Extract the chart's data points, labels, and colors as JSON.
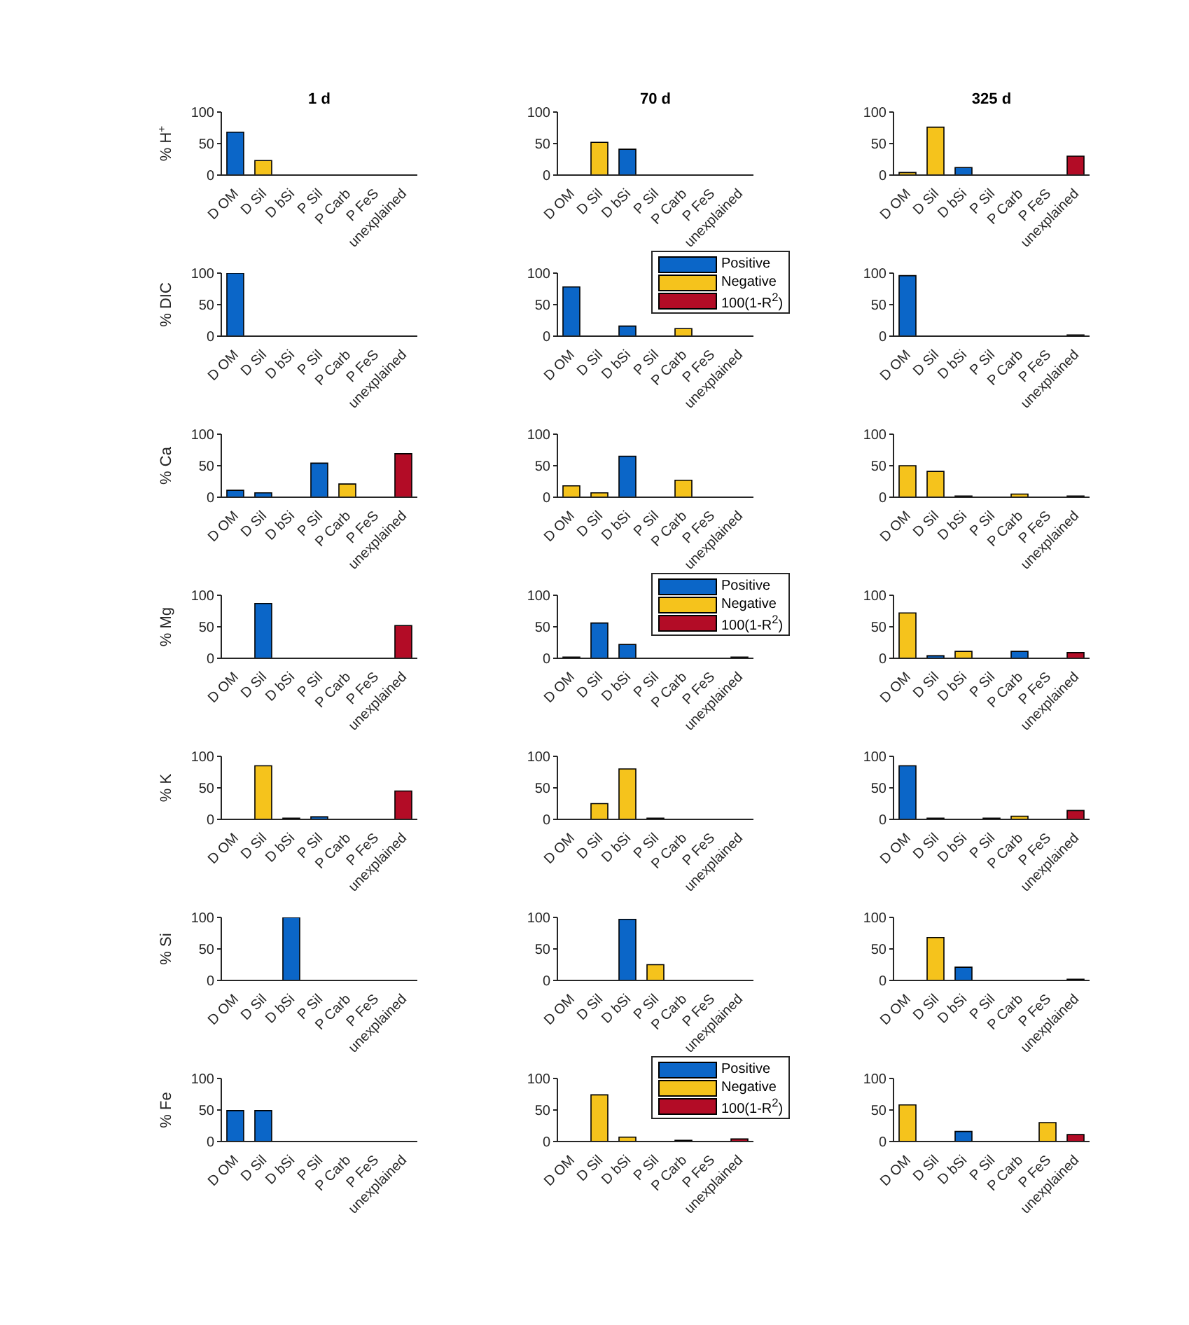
{
  "chart_data": [
    {
      "type": "bar",
      "title": "1 d",
      "ylabel": "% H$^{+}$",
      "categories": [
        "D OM",
        "D Sil",
        "D bSi",
        "P Sil",
        "P Carb",
        "P FeS",
        "unexplained"
      ],
      "stacked": true,
      "ylim": [
        0,
        100
      ],
      "yticks": [
        0,
        50,
        100
      ],
      "series": [
        {
          "color": "#0b66c8",
          "values": [
            68,
            null,
            null,
            null,
            null,
            null,
            null
          ]
        },
        {
          "color": "#f5c31c",
          "values": [
            null,
            23,
            null,
            null,
            null,
            null,
            null
          ]
        }
      ]
    },
    {
      "type": "bar",
      "title": "70 d",
      "categories": [
        "D OM",
        "D Sil",
        "D bSi",
        "P Sil",
        "P Carb",
        "P FeS",
        "unexplained"
      ],
      "stacked": true,
      "ylim": [
        0,
        100
      ],
      "yticks": [
        0,
        50,
        100
      ],
      "series": [
        {
          "color": "#0b66c8",
          "values": [
            null,
            null,
            41,
            null,
            null,
            null,
            null
          ]
        },
        {
          "color": "#f5c31c",
          "values": [
            null,
            52,
            null,
            null,
            null,
            null,
            null
          ]
        }
      ]
    },
    {
      "type": "bar",
      "title": "325 d",
      "categories": [
        "D OM",
        "D Sil",
        "D bSi",
        "P Sil",
        "P Carb",
        "P FeS",
        "unexplained"
      ],
      "stacked": true,
      "ylim": [
        0,
        100
      ],
      "yticks": [
        0,
        50,
        100
      ],
      "series": [
        {
          "color": "#0b66c8",
          "values": [
            null,
            null,
            12,
            null,
            null,
            null,
            null
          ]
        },
        {
          "color": "#f5c31c",
          "values": [
            4,
            76,
            null,
            null,
            null,
            null,
            null
          ]
        },
        {
          "color": "#b30c26",
          "values": [
            null,
            null,
            null,
            null,
            null,
            null,
            30
          ]
        }
      ]
    },
    {
      "type": "bar",
      "ylabel": "% DIC",
      "categories": [
        "D OM",
        "D Sil",
        "D bSi",
        "P Sil",
        "P Carb",
        "P FeS",
        "unexplained"
      ],
      "stacked": true,
      "ylim": [
        0,
        100
      ],
      "yticks": [
        0,
        50,
        100
      ],
      "series": [
        {
          "color": "#0b66c8",
          "values": [
            100,
            null,
            null,
            null,
            null,
            null,
            null
          ]
        }
      ]
    },
    {
      "type": "bar",
      "categories": [
        "D OM",
        "D Sil",
        "D bSi",
        "P Sil",
        "P Carb",
        "P FeS",
        "unexplained"
      ],
      "stacked": true,
      "ylim": [
        0,
        100
      ],
      "yticks": [
        0,
        50,
        100
      ],
      "legend": "top right",
      "series": [
        {
          "name": "Positive",
          "color": "#0b66c8",
          "values": [
            78,
            null,
            16,
            null,
            null,
            null,
            null
          ]
        },
        {
          "name": "Negative",
          "color": "#f5c31c",
          "values": [
            null,
            null,
            null,
            null,
            12,
            null,
            null
          ]
        },
        {
          "name": "100(1-R$^{2}$)",
          "color": "#b30c26",
          "values": [
            null,
            null,
            null,
            null,
            null,
            null,
            null
          ]
        }
      ]
    },
    {
      "type": "bar",
      "categories": [
        "D OM",
        "D Sil",
        "D bSi",
        "P Sil",
        "P Carb",
        "P FeS",
        "unexplained"
      ],
      "stacked": true,
      "ylim": [
        0,
        100
      ],
      "yticks": [
        0,
        50,
        100
      ],
      "series": [
        {
          "color": "#0b66c8",
          "values": [
            96,
            null,
            null,
            null,
            null,
            null,
            null
          ]
        },
        {
          "color": "#b30c26",
          "values": [
            null,
            null,
            null,
            null,
            null,
            null,
            2
          ]
        }
      ]
    },
    {
      "type": "bar",
      "ylabel": "% Ca",
      "categories": [
        "D OM",
        "D Sil",
        "D bSi",
        "P Sil",
        "P Carb",
        "P FeS",
        "unexplained"
      ],
      "stacked": true,
      "ylim": [
        0,
        100
      ],
      "yticks": [
        0,
        50,
        100
      ],
      "series": [
        {
          "color": "#0b66c8",
          "values": [
            11,
            7,
            null,
            54,
            null,
            null,
            null
          ]
        },
        {
          "color": "#f5c31c",
          "values": [
            null,
            null,
            null,
            null,
            21,
            null,
            null
          ]
        },
        {
          "color": "#b30c26",
          "values": [
            null,
            null,
            null,
            null,
            null,
            null,
            69
          ]
        }
      ]
    },
    {
      "type": "bar",
      "categories": [
        "D OM",
        "D Sil",
        "D bSi",
        "P Sil",
        "P Carb",
        "P FeS",
        "unexplained"
      ],
      "stacked": true,
      "ylim": [
        0,
        100
      ],
      "yticks": [
        0,
        50,
        100
      ],
      "series": [
        {
          "color": "#0b66c8",
          "values": [
            null,
            null,
            65,
            null,
            null,
            null,
            null
          ]
        },
        {
          "color": "#f5c31c",
          "values": [
            18,
            7,
            null,
            null,
            27,
            null,
            null
          ]
        }
      ]
    },
    {
      "type": "bar",
      "categories": [
        "D OM",
        "D Sil",
        "D bSi",
        "P Sil",
        "P Carb",
        "P FeS",
        "unexplained"
      ],
      "stacked": true,
      "ylim": [
        0,
        100
      ],
      "yticks": [
        0,
        50,
        100
      ],
      "series": [
        {
          "color": "#0b66c8",
          "values": [
            null,
            null,
            2,
            null,
            null,
            null,
            null
          ]
        },
        {
          "color": "#f5c31c",
          "values": [
            50,
            41,
            null,
            null,
            5,
            null,
            null
          ]
        },
        {
          "color": "#b30c26",
          "values": [
            null,
            null,
            null,
            null,
            null,
            null,
            2
          ]
        }
      ]
    },
    {
      "type": "bar",
      "ylabel": "% Mg",
      "categories": [
        "D OM",
        "D Sil",
        "D bSi",
        "P Sil",
        "P Carb",
        "P FeS",
        "unexplained"
      ],
      "stacked": true,
      "ylim": [
        0,
        100
      ],
      "yticks": [
        0,
        50,
        100
      ],
      "series": [
        {
          "color": "#0b66c8",
          "values": [
            null,
            87,
            null,
            null,
            null,
            null,
            null
          ]
        },
        {
          "color": "#b30c26",
          "values": [
            null,
            null,
            null,
            null,
            null,
            null,
            52
          ]
        }
      ]
    },
    {
      "type": "bar",
      "categories": [
        "D OM",
        "D Sil",
        "D bSi",
        "P Sil",
        "P Carb",
        "P FeS",
        "unexplained"
      ],
      "stacked": true,
      "ylim": [
        0,
        100
      ],
      "yticks": [
        0,
        50,
        100
      ],
      "legend": "top right",
      "series": [
        {
          "name": "Positive",
          "color": "#0b66c8",
          "values": [
            2,
            56,
            22,
            null,
            null,
            null,
            null
          ]
        },
        {
          "name": "Negative",
          "color": "#f5c31c",
          "values": [
            null,
            null,
            null,
            null,
            null,
            null,
            null
          ]
        },
        {
          "name": "100(1-R$^{2}$)",
          "color": "#b30c26",
          "values": [
            null,
            null,
            null,
            null,
            null,
            null,
            2
          ]
        }
      ]
    },
    {
      "type": "bar",
      "categories": [
        "D OM",
        "D Sil",
        "D bSi",
        "P Sil",
        "P Carb",
        "P FeS",
        "unexplained"
      ],
      "stacked": true,
      "ylim": [
        0,
        100
      ],
      "yticks": [
        0,
        50,
        100
      ],
      "series": [
        {
          "color": "#0b66c8",
          "values": [
            null,
            4,
            null,
            null,
            11,
            null,
            null
          ]
        },
        {
          "color": "#f5c31c",
          "values": [
            72,
            null,
            11,
            null,
            null,
            null,
            null
          ]
        },
        {
          "color": "#b30c26",
          "values": [
            null,
            null,
            null,
            null,
            null,
            null,
            9
          ]
        }
      ]
    },
    {
      "type": "bar",
      "ylabel": "% K",
      "categories": [
        "D OM",
        "D Sil",
        "D bSi",
        "P Sil",
        "P Carb",
        "P FeS",
        "unexplained"
      ],
      "stacked": true,
      "ylim": [
        0,
        100
      ],
      "yticks": [
        0,
        50,
        100
      ],
      "series": [
        {
          "color": "#0b66c8",
          "values": [
            null,
            null,
            2,
            4,
            null,
            null,
            null
          ]
        },
        {
          "color": "#f5c31c",
          "values": [
            null,
            85,
            null,
            null,
            null,
            null,
            null
          ]
        },
        {
          "color": "#b30c26",
          "values": [
            null,
            null,
            null,
            null,
            null,
            null,
            45
          ]
        }
      ]
    },
    {
      "type": "bar",
      "categories": [
        "D OM",
        "D Sil",
        "D bSi",
        "P Sil",
        "P Carb",
        "P FeS",
        "unexplained"
      ],
      "stacked": true,
      "ylim": [
        0,
        100
      ],
      "yticks": [
        0,
        50,
        100
      ],
      "series": [
        {
          "color": "#0b66c8",
          "values": [
            null,
            null,
            null,
            2,
            null,
            null,
            null
          ]
        },
        {
          "color": "#f5c31c",
          "values": [
            null,
            25,
            80,
            null,
            null,
            null,
            null
          ]
        }
      ]
    },
    {
      "type": "bar",
      "categories": [
        "D OM",
        "D Sil",
        "D bSi",
        "P Sil",
        "P Carb",
        "P FeS",
        "unexplained"
      ],
      "stacked": true,
      "ylim": [
        0,
        100
      ],
      "yticks": [
        0,
        50,
        100
      ],
      "series": [
        {
          "color": "#0b66c8",
          "values": [
            85,
            2,
            null,
            2,
            null,
            null,
            null
          ]
        },
        {
          "color": "#f5c31c",
          "values": [
            null,
            null,
            null,
            null,
            5,
            null,
            null
          ]
        },
        {
          "color": "#b30c26",
          "values": [
            null,
            null,
            null,
            null,
            null,
            null,
            14
          ]
        }
      ]
    },
    {
      "type": "bar",
      "ylabel": "% Si",
      "categories": [
        "D OM",
        "D Sil",
        "D bSi",
        "P Sil",
        "P Carb",
        "P FeS",
        "unexplained"
      ],
      "stacked": true,
      "ylim": [
        0,
        100
      ],
      "yticks": [
        0,
        50,
        100
      ],
      "series": [
        {
          "color": "#0b66c8",
          "values": [
            null,
            null,
            100,
            null,
            null,
            null,
            null
          ]
        }
      ]
    },
    {
      "type": "bar",
      "categories": [
        "D OM",
        "D Sil",
        "D bSi",
        "P Sil",
        "P Carb",
        "P FeS",
        "unexplained"
      ],
      "stacked": true,
      "ylim": [
        0,
        100
      ],
      "yticks": [
        0,
        50,
        100
      ],
      "series": [
        {
          "color": "#0b66c8",
          "values": [
            null,
            null,
            97,
            null,
            null,
            null,
            null
          ]
        },
        {
          "color": "#f5c31c",
          "values": [
            null,
            null,
            null,
            25,
            null,
            null,
            null
          ]
        }
      ]
    },
    {
      "type": "bar",
      "categories": [
        "D OM",
        "D Sil",
        "D bSi",
        "P Sil",
        "P Carb",
        "P FeS",
        "unexplained"
      ],
      "stacked": true,
      "ylim": [
        0,
        100
      ],
      "yticks": [
        0,
        50,
        100
      ],
      "series": [
        {
          "color": "#0b66c8",
          "values": [
            null,
            null,
            21,
            null,
            null,
            null,
            null
          ]
        },
        {
          "color": "#f5c31c",
          "values": [
            null,
            68,
            null,
            null,
            null,
            null,
            null
          ]
        },
        {
          "color": "#b30c26",
          "values": [
            null,
            null,
            null,
            null,
            null,
            null,
            2
          ]
        }
      ]
    },
    {
      "type": "bar",
      "ylabel": "% Fe",
      "categories": [
        "D OM",
        "D Sil",
        "D bSi",
        "P Sil",
        "P Carb",
        "P FeS",
        "unexplained"
      ],
      "stacked": true,
      "ylim": [
        0,
        100
      ],
      "yticks": [
        0,
        50,
        100
      ],
      "series": [
        {
          "color": "#0b66c8",
          "values": [
            49,
            49,
            null,
            null,
            null,
            null,
            null
          ]
        }
      ]
    },
    {
      "type": "bar",
      "categories": [
        "D OM",
        "D Sil",
        "D bSi",
        "P Sil",
        "P Carb",
        "P FeS",
        "unexplained"
      ],
      "stacked": true,
      "ylim": [
        0,
        100
      ],
      "yticks": [
        0,
        50,
        100
      ],
      "legend": "top right",
      "series": [
        {
          "name": "Positive",
          "color": "#0b66c8",
          "values": [
            null,
            null,
            null,
            null,
            2,
            null,
            null
          ]
        },
        {
          "name": "Negative",
          "color": "#f5c31c",
          "values": [
            null,
            74,
            7,
            null,
            null,
            null,
            null
          ]
        },
        {
          "name": "100(1-R$^{2}$)",
          "color": "#b30c26",
          "values": [
            null,
            null,
            null,
            null,
            null,
            null,
            4
          ]
        }
      ]
    },
    {
      "type": "bar",
      "categories": [
        "D OM",
        "D Sil",
        "D bSi",
        "P Sil",
        "P Carb",
        "P FeS",
        "unexplained"
      ],
      "stacked": true,
      "ylim": [
        0,
        100
      ],
      "yticks": [
        0,
        50,
        100
      ],
      "series": [
        {
          "color": "#0b66c8",
          "values": [
            null,
            null,
            16,
            null,
            null,
            null,
            null
          ]
        },
        {
          "color": "#f5c31c",
          "values": [
            58,
            null,
            null,
            null,
            null,
            30,
            null
          ]
        },
        {
          "color": "#b30c26",
          "values": [
            null,
            null,
            null,
            null,
            null,
            null,
            11
          ]
        }
      ]
    }
  ]
}
